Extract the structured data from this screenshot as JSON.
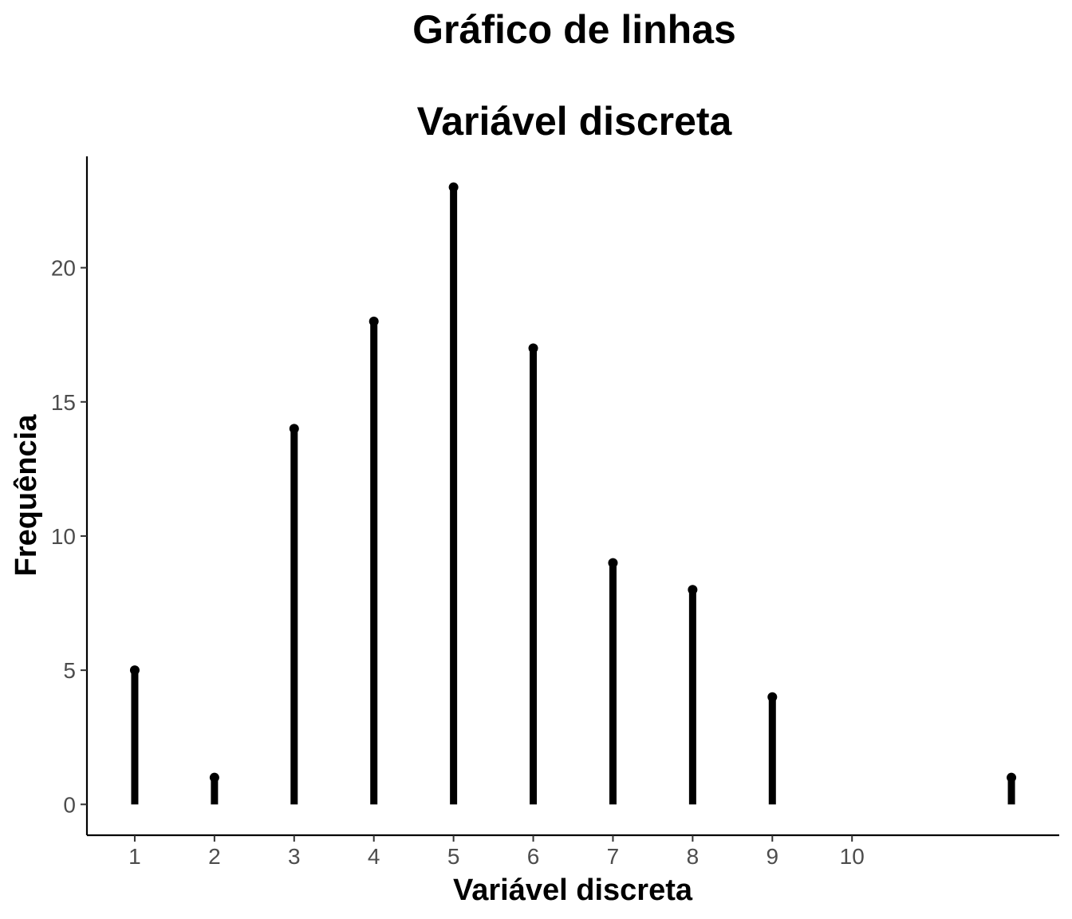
{
  "chart_data": {
    "type": "lollipop",
    "title": "Gráfico de linhas",
    "subtitle": "Variável discreta",
    "xlabel": "Variável discreta",
    "ylabel": "Frequência",
    "x": [
      1,
      2,
      3,
      4,
      5,
      6,
      7,
      8,
      9,
      12
    ],
    "values": [
      5,
      1,
      14,
      18,
      23,
      17,
      9,
      8,
      4,
      1
    ],
    "xticks": [
      "1",
      "2",
      "3",
      "4",
      "5",
      "6",
      "7",
      "8",
      "9",
      "10"
    ],
    "xtick_values": [
      1,
      2,
      3,
      4,
      5,
      6,
      7,
      8,
      9,
      10
    ],
    "yticks": [
      "0",
      "5",
      "10",
      "15",
      "20"
    ],
    "ytick_values": [
      0,
      5,
      10,
      15,
      20
    ],
    "xlim": [
      0.4,
      12.6
    ],
    "ylim": [
      -1.15,
      24.15
    ],
    "grid": false,
    "legend": "none",
    "color": "#000000"
  }
}
